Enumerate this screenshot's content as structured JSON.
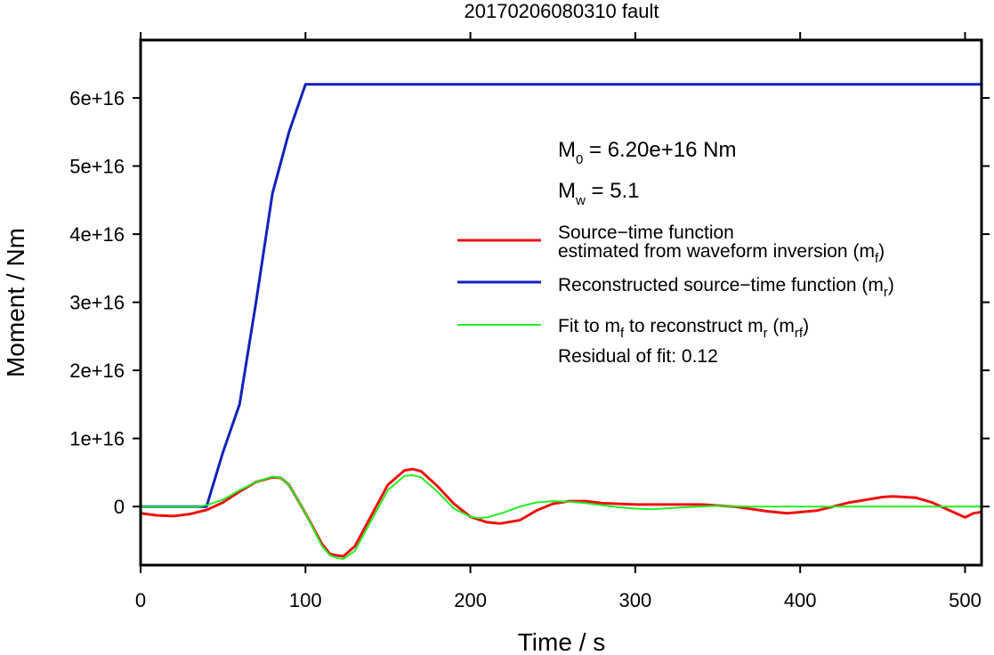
{
  "chart_data": {
    "type": "line",
    "title": "20170206080310 fault",
    "xlabel": "Time / s",
    "ylabel": "Moment / Nm",
    "xlim": [
      0,
      510
    ],
    "ylim": [
      -8600000000000000.0,
      6.85e+16
    ],
    "x_ticks": [
      0,
      100,
      200,
      300,
      400,
      500
    ],
    "x_tick_labels": [
      "0",
      "100",
      "200",
      "300",
      "400",
      "500"
    ],
    "y_ticks": [
      0,
      1e+16,
      2e+16,
      3e+16,
      4e+16,
      5e+16,
      6e+16
    ],
    "y_tick_labels": [
      "0",
      "1e+16",
      "2e+16",
      "3e+16",
      "4e+16",
      "5e+16",
      "6e+16"
    ],
    "grid": false,
    "legend_position": "right",
    "annotations": {
      "m0": {
        "main": "M",
        "sub": "0",
        "rest": " = 6.20e+16 Nm"
      },
      "mw": {
        "main": "M",
        "sub": "w",
        "rest": " = 5.1"
      },
      "residual": "Residual of fit: 0.12"
    },
    "legend": [
      {
        "color": "#ee1111",
        "line1": "Source−time function",
        "line2a": "estimated from waveform inversion (m",
        "line2sub": "f",
        "line2b": ")"
      },
      {
        "color": "#1122bb",
        "line1a": "Reconstructed source−time function (m",
        "line1sub": "r",
        "line1b": ")"
      },
      {
        "color": "#22ee22",
        "p1": "Fit to m",
        "s1": "f",
        "p2": " to reconstruct m",
        "s2": "r",
        "p3": " (m",
        "s3": "rf",
        "p4": ")"
      }
    ],
    "series": [
      {
        "key": "mf",
        "color": "#ee1111",
        "x": [
          0,
          10,
          20,
          30,
          40,
          50,
          60,
          70,
          80,
          85,
          90,
          100,
          110,
          115,
          120,
          123,
          130,
          140,
          150,
          160,
          165,
          170,
          180,
          190,
          200,
          210,
          218,
          230,
          240,
          250,
          260,
          270,
          280,
          300,
          320,
          340,
          360,
          380,
          392,
          410,
          430,
          450,
          456,
          470,
          480,
          490,
          500,
          505,
          510
        ],
        "y": [
          -1000000000000000.0,
          -1300000000000000.0,
          -1400000000000000.0,
          -1100000000000000.0,
          -500000000000000.0,
          600000000000000.0,
          2200000000000000.0,
          3600000000000000.0,
          4300000000000000.0,
          4200000000000000.0,
          3200000000000000.0,
          -1000000000000000.0,
          -5500000000000000.0,
          -7000000000000000.0,
          -7200000000000000.0,
          -7300000000000000.0,
          -5800000000000000.0,
          -1300000000000000.0,
          3200000000000000.0,
          5300000000000000.0,
          5500000000000000.0,
          5200000000000000.0,
          3000000000000000.0,
          400000000000000.0,
          -1500000000000000.0,
          -2300000000000000.0,
          -2500000000000000.0,
          -2000000000000000.0,
          -600000000000000.0,
          400000000000000.0,
          800000000000000.0,
          800000000000000.0,
          500000000000000.0,
          300000000000000.0,
          300000000000000.0,
          300000000000000.0,
          0,
          -700000000000000.0,
          -1000000000000000.0,
          -600000000000000.0,
          600000000000000.0,
          1400000000000000.0,
          1500000000000000.0,
          1300000000000000.0,
          600000000000000.0,
          -500000000000000.0,
          -1600000000000000.0,
          -1000000000000000.0,
          -800000000000000.0
        ]
      },
      {
        "key": "mr",
        "color": "#1122bb",
        "x": [
          0,
          40,
          50,
          60,
          70,
          80,
          90,
          100,
          510
        ],
        "y": [
          0,
          0,
          8000000000000000.0,
          1.5e+16,
          3e+16,
          4.6e+16,
          5.5e+16,
          6.2e+16,
          6.2e+16
        ]
      },
      {
        "key": "mrf",
        "color": "#22ee22",
        "x": [
          0,
          35,
          40,
          50,
          60,
          70,
          80,
          85,
          90,
          100,
          110,
          115,
          120,
          123,
          130,
          140,
          150,
          160,
          165,
          170,
          180,
          190,
          200,
          205,
          210,
          220,
          230,
          240,
          250,
          260,
          270,
          280,
          290,
          300,
          310,
          330,
          350,
          370,
          400,
          450,
          510
        ],
        "y": [
          0,
          0,
          200000000000000.0,
          1000000000000000.0,
          2400000000000000.0,
          3600000000000000.0,
          4400000000000000.0,
          4200000000000000.0,
          3200000000000000.0,
          -1000000000000000.0,
          -5800000000000000.0,
          -7200000000000000.0,
          -7600000000000000.0,
          -7700000000000000.0,
          -6500000000000000.0,
          -2000000000000000.0,
          2400000000000000.0,
          4500000000000000.0,
          4600000000000000.0,
          4300000000000000.0,
          2200000000000000.0,
          -300000000000000.0,
          -1500000000000000.0,
          -1700000000000000.0,
          -1600000000000000.0,
          -900000000000000.0,
          0,
          600000000000000.0,
          800000000000000.0,
          700000000000000.0,
          500000000000000.0,
          200000000000000.0,
          -100000000000000.0,
          -300000000000000.0,
          -400000000000000.0,
          -100000000000000.0,
          100000000000000.0,
          0,
          0,
          0,
          0
        ]
      }
    ]
  }
}
